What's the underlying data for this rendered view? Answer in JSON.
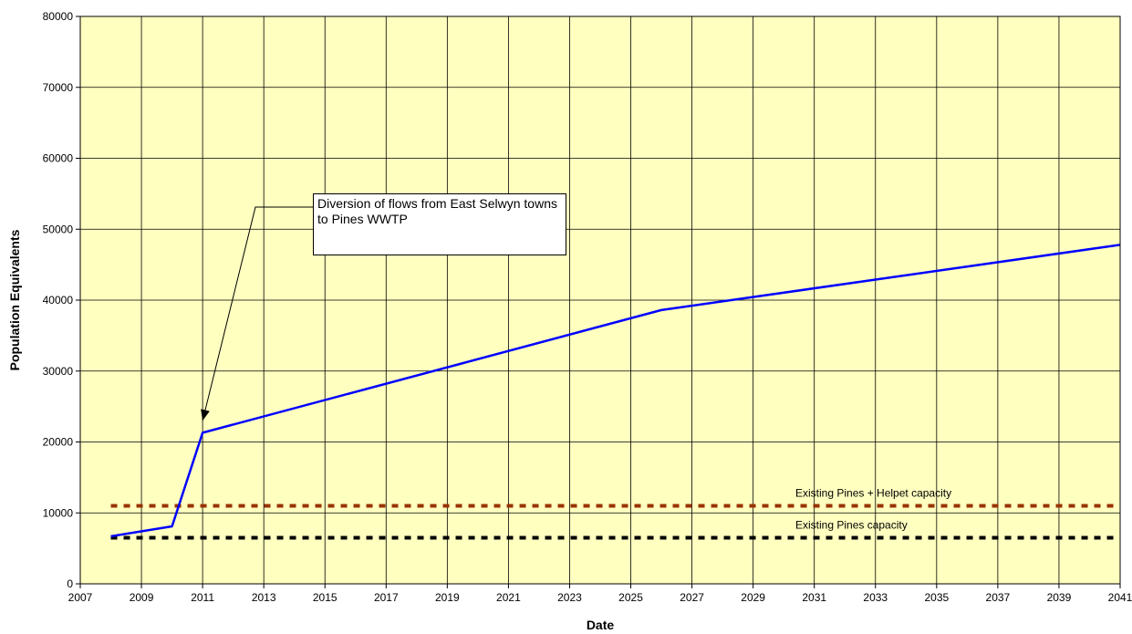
{
  "chart_data": {
    "type": "line",
    "title": "",
    "xlabel": "Date",
    "ylabel": "Population Equivalents",
    "xlim": [
      2007,
      2041
    ],
    "ylim": [
      0,
      80000
    ],
    "x_ticks": [
      "2007",
      "2009",
      "2011",
      "2013",
      "2015",
      "2017",
      "2019",
      "2021",
      "2023",
      "2025",
      "2027",
      "2029",
      "2031",
      "2033",
      "2035",
      "2037",
      "2039",
      "2041"
    ],
    "y_ticks": [
      "0",
      "10000",
      "20000",
      "30000",
      "40000",
      "50000",
      "60000",
      "70000",
      "80000"
    ],
    "grid": true,
    "plot_background": "#ffffc0",
    "series": [
      {
        "color": "#0000ff",
        "style": "solid",
        "x": [
          2008,
          2010,
          2011,
          2026,
          2041
        ],
        "y": [
          6700,
          8100,
          21300,
          38600,
          47800
        ]
      }
    ],
    "reference_lines": [
      {
        "label": "Existing Pines + Helpet capacity",
        "y": 11000,
        "x": [
          2008,
          2041
        ],
        "color": "#993300",
        "style": "dotted"
      },
      {
        "label": "Existing Pines capacity",
        "y": 6500,
        "x": [
          2008,
          2041
        ],
        "color": "#000000",
        "style": "dotted"
      }
    ],
    "annotations": [
      {
        "text": "Diversion of flows from East Selwyn towns to Pines WWTP",
        "points_to": {
          "x": 2011,
          "y": 23000
        }
      }
    ]
  }
}
